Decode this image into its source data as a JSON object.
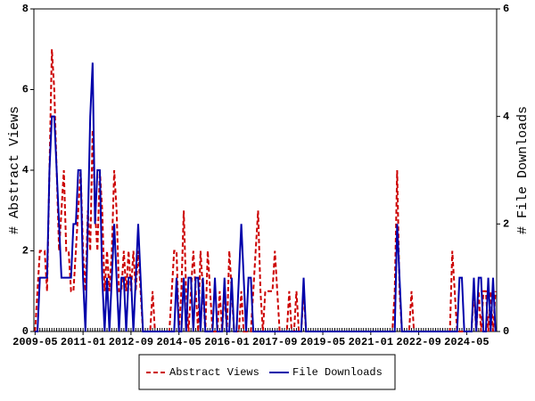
{
  "chart_data": {
    "type": "line",
    "x": [
      "2009-05",
      "2009-06",
      "2009-07",
      "2009-08",
      "2009-09",
      "2009-10",
      "2009-11",
      "2009-12",
      "2010-01",
      "2010-02",
      "2010-03",
      "2010-04",
      "2010-05",
      "2010-06",
      "2010-07",
      "2010-08",
      "2010-09",
      "2010-10",
      "2010-11",
      "2010-12",
      "2011-01",
      "2011-02",
      "2011-03",
      "2011-04",
      "2011-05",
      "2011-06",
      "2011-07",
      "2011-08",
      "2011-09",
      "2011-10",
      "2011-11",
      "2011-12",
      "2012-01",
      "2012-02",
      "2012-03",
      "2012-04",
      "2012-05",
      "2012-06",
      "2012-07",
      "2012-08",
      "2012-09",
      "2012-10",
      "2012-11",
      "2012-12",
      "2013-01",
      "2013-02",
      "2013-03",
      "2013-04",
      "2013-05",
      "2013-06",
      "2013-07",
      "2013-08",
      "2013-09",
      "2013-10",
      "2013-11",
      "2013-12",
      "2014-01",
      "2014-02",
      "2014-03",
      "2014-04",
      "2014-05",
      "2014-06",
      "2014-07",
      "2014-08",
      "2014-09",
      "2014-10",
      "2014-11",
      "2014-12",
      "2015-01",
      "2015-02",
      "2015-03",
      "2015-04",
      "2015-05",
      "2015-06",
      "2015-07",
      "2015-08",
      "2015-09",
      "2015-10",
      "2015-11",
      "2015-12",
      "2016-01",
      "2016-02",
      "2016-03",
      "2016-04",
      "2016-05",
      "2016-06",
      "2016-07",
      "2016-08",
      "2016-09",
      "2016-10",
      "2016-11",
      "2016-12",
      "2017-01",
      "2017-02",
      "2017-03",
      "2017-04",
      "2017-05",
      "2017-06",
      "2017-07",
      "2017-08",
      "2017-09",
      "2017-10",
      "2017-11",
      "2017-12",
      "2018-01",
      "2018-02",
      "2018-03",
      "2018-04",
      "2018-05",
      "2018-06",
      "2018-07",
      "2018-08",
      "2018-09",
      "2018-10",
      "2018-11",
      "2018-12",
      "2019-01",
      "2019-02",
      "2019-03",
      "2019-04",
      "2019-05",
      "2019-06",
      "2019-07",
      "2019-08",
      "2019-09",
      "2019-10",
      "2019-11",
      "2019-12",
      "2020-01",
      "2020-02",
      "2020-03",
      "2020-04",
      "2020-05",
      "2020-06",
      "2020-07",
      "2020-08",
      "2020-09",
      "2020-10",
      "2020-11",
      "2020-12",
      "2021-01",
      "2021-02",
      "2021-03",
      "2021-04",
      "2021-05",
      "2021-06",
      "2021-07",
      "2021-08",
      "2021-09",
      "2021-10",
      "2021-11",
      "2021-12",
      "2022-01",
      "2022-02",
      "2022-03",
      "2022-04",
      "2022-05",
      "2022-06",
      "2022-07",
      "2022-08",
      "2022-09",
      "2022-10",
      "2022-11",
      "2022-12",
      "2023-01",
      "2023-02",
      "2023-03",
      "2023-04",
      "2023-05",
      "2023-06",
      "2023-07",
      "2023-08",
      "2023-09",
      "2023-10",
      "2023-11",
      "2023-12",
      "2024-01",
      "2024-02",
      "2024-03",
      "2024-04",
      "2024-05",
      "2024-06",
      "2024-07",
      "2024-08",
      "2024-09",
      "2024-10",
      "2024-11",
      "2024-12",
      "2025-01",
      "2025-02",
      "2025-03",
      "2025-04",
      "2025-05"
    ],
    "xticks": [
      "2009-05",
      "2011-01",
      "2012-09",
      "2014-05",
      "2016-01",
      "2017-09",
      "2019-05",
      "2021-01",
      "2022-09",
      "2024-05"
    ],
    "ylabel": "# Abstract Views",
    "y2label": "# File Downloads",
    "ylim": [
      0,
      8
    ],
    "yticks": [
      0,
      2,
      4,
      6,
      8
    ],
    "y2lim": [
      0,
      6
    ],
    "y2ticks": [
      0,
      2,
      4,
      6
    ],
    "legend": "bottom",
    "series": [
      {
        "name": "Abstract Views",
        "color": "#cc0000",
        "dashed": true,
        "values": [
          0,
          1,
          2,
          2,
          2,
          1,
          4,
          7,
          6,
          4,
          2,
          3,
          4,
          2,
          2,
          1,
          1,
          2,
          3,
          4,
          2,
          1,
          3,
          2,
          5,
          3,
          2,
          4,
          3,
          1,
          2,
          1,
          2,
          4,
          3,
          1,
          1,
          2,
          1,
          2,
          1,
          2,
          1,
          2,
          1,
          0,
          0,
          0,
          0,
          1,
          0,
          0,
          0,
          0,
          0,
          0,
          0,
          1,
          2,
          2,
          0,
          1,
          3,
          1,
          0,
          1,
          2,
          1,
          0,
          2,
          1,
          0,
          2,
          1,
          0,
          0,
          0,
          1,
          0,
          1,
          0,
          2,
          1,
          0,
          0,
          0,
          1,
          0,
          0,
          0,
          0,
          1,
          2,
          3,
          1,
          0,
          1,
          1,
          1,
          1,
          2,
          1,
          0,
          0,
          0,
          0,
          1,
          0,
          0,
          1,
          0,
          0,
          1,
          0,
          0,
          0,
          0,
          0,
          0,
          0,
          0,
          0,
          0,
          0,
          0,
          0,
          0,
          0,
          0,
          0,
          0,
          0,
          0,
          0,
          0,
          0,
          0,
          0,
          0,
          0,
          0,
          0,
          0,
          0,
          0,
          0,
          0,
          0,
          0,
          0,
          1,
          4,
          1,
          0,
          0,
          0,
          0,
          1,
          0,
          0,
          0,
          0,
          0,
          0,
          0,
          0,
          0,
          0,
          0,
          0,
          0,
          0,
          0,
          0,
          2,
          1,
          0,
          0,
          0,
          0,
          0,
          0,
          0,
          1,
          0,
          1,
          0,
          1,
          1,
          0,
          1,
          0,
          1
        ]
      },
      {
        "name": "File Downloads",
        "color": "#0000aa",
        "dashed": false,
        "axis": "y2",
        "values": [
          0,
          0,
          1,
          1,
          1,
          1,
          3,
          4,
          4,
          3,
          2,
          1,
          1,
          1,
          1,
          1,
          2,
          2,
          3,
          3,
          1,
          0,
          2,
          4,
          5,
          2,
          3,
          3,
          1,
          0,
          1,
          0,
          1,
          2,
          1,
          0,
          1,
          1,
          0,
          1,
          1,
          0,
          1,
          2,
          1,
          0,
          0,
          0,
          0,
          0,
          0,
          0,
          0,
          0,
          0,
          0,
          0,
          0,
          0,
          1,
          0,
          0,
          1,
          0,
          1,
          1,
          0,
          1,
          1,
          0,
          1,
          0,
          0,
          0,
          0,
          1,
          0,
          0,
          0,
          1,
          0,
          0,
          1,
          0,
          0,
          1,
          2,
          1,
          0,
          1,
          1,
          0,
          0,
          0,
          0,
          0,
          0,
          0,
          0,
          0,
          0,
          0,
          0,
          0,
          0,
          0,
          0,
          0,
          0,
          0,
          0,
          0,
          1,
          0,
          0,
          0,
          0,
          0,
          0,
          0,
          0,
          0,
          0,
          0,
          0,
          0,
          0,
          0,
          0,
          0,
          0,
          0,
          0,
          0,
          0,
          0,
          0,
          0,
          0,
          0,
          0,
          0,
          0,
          0,
          0,
          0,
          0,
          0,
          0,
          0,
          0,
          2,
          1,
          0,
          0,
          0,
          0,
          0,
          0,
          0,
          0,
          0,
          0,
          0,
          0,
          0,
          0,
          0,
          0,
          0,
          0,
          0,
          0,
          0,
          0,
          0,
          0,
          1,
          1,
          0,
          0,
          0,
          0,
          1,
          0,
          1,
          1,
          0,
          0,
          1,
          0,
          1,
          0
        ]
      }
    ]
  }
}
